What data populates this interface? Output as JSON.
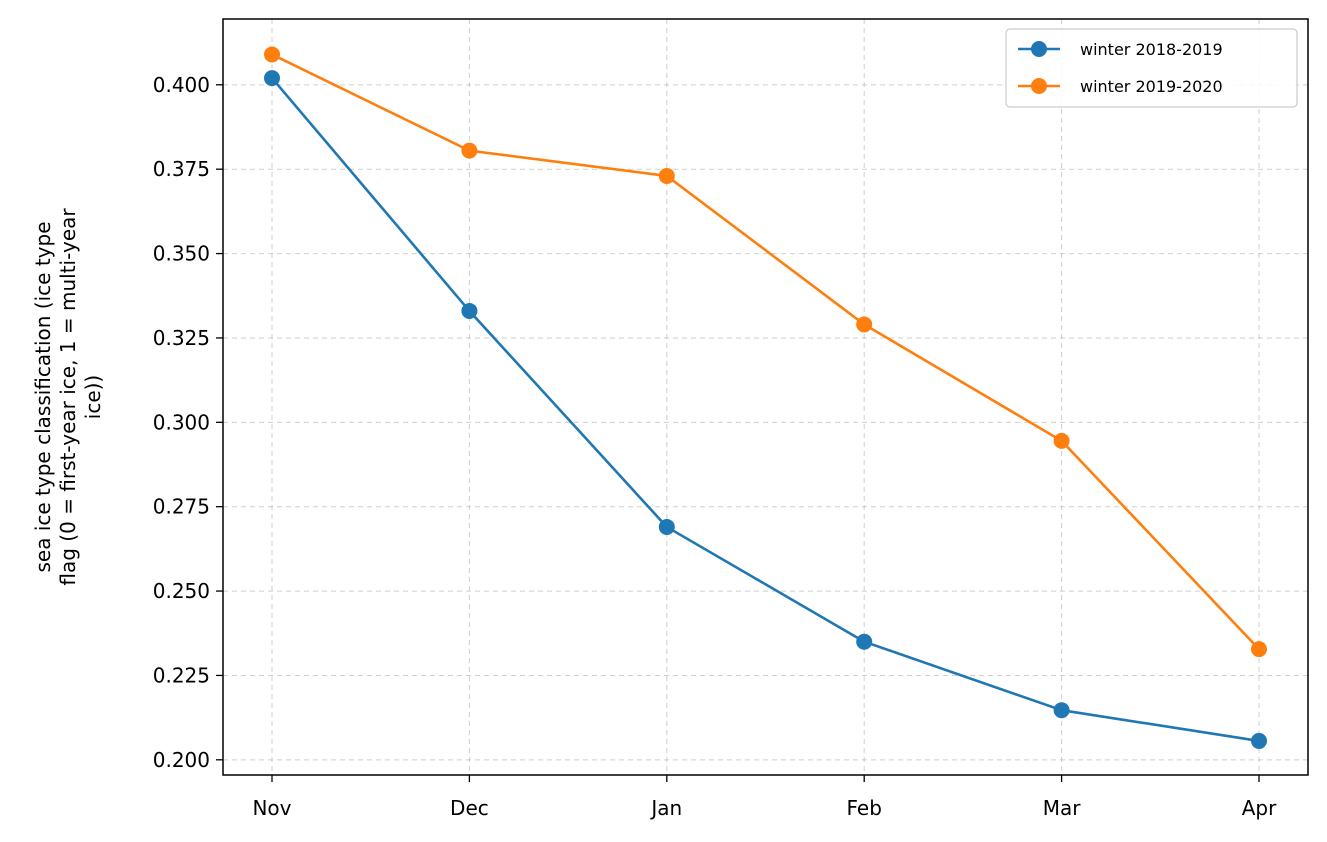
{
  "chart_data": {
    "type": "line",
    "title": "",
    "xlabel": "",
    "ylabel_lines": [
      "sea ice type classification (ice type",
      "flag (0 = first-year ice, 1 = multi-year",
      "ice))"
    ],
    "categories": [
      "Nov",
      "Dec",
      "Jan",
      "Feb",
      "Mar",
      "Apr"
    ],
    "ylim": [
      0.1955,
      0.4195
    ],
    "yticks": [
      0.2,
      0.225,
      0.25,
      0.275,
      0.3,
      0.325,
      0.35,
      0.375,
      0.4
    ],
    "ytick_labels": [
      "0.200",
      "0.225",
      "0.250",
      "0.275",
      "0.300",
      "0.325",
      "0.350",
      "0.375",
      "0.400"
    ],
    "grid": true,
    "legend_position": "top-right",
    "series": [
      {
        "name": "winter 2018-2019",
        "color": "#1f77b4",
        "values": [
          0.402,
          0.333,
          0.269,
          0.235,
          0.2147,
          0.2056
        ]
      },
      {
        "name": "winter 2019-2020",
        "color": "#ff7f0e",
        "values": [
          0.409,
          0.3805,
          0.373,
          0.329,
          0.2945,
          0.2328
        ]
      }
    ]
  }
}
